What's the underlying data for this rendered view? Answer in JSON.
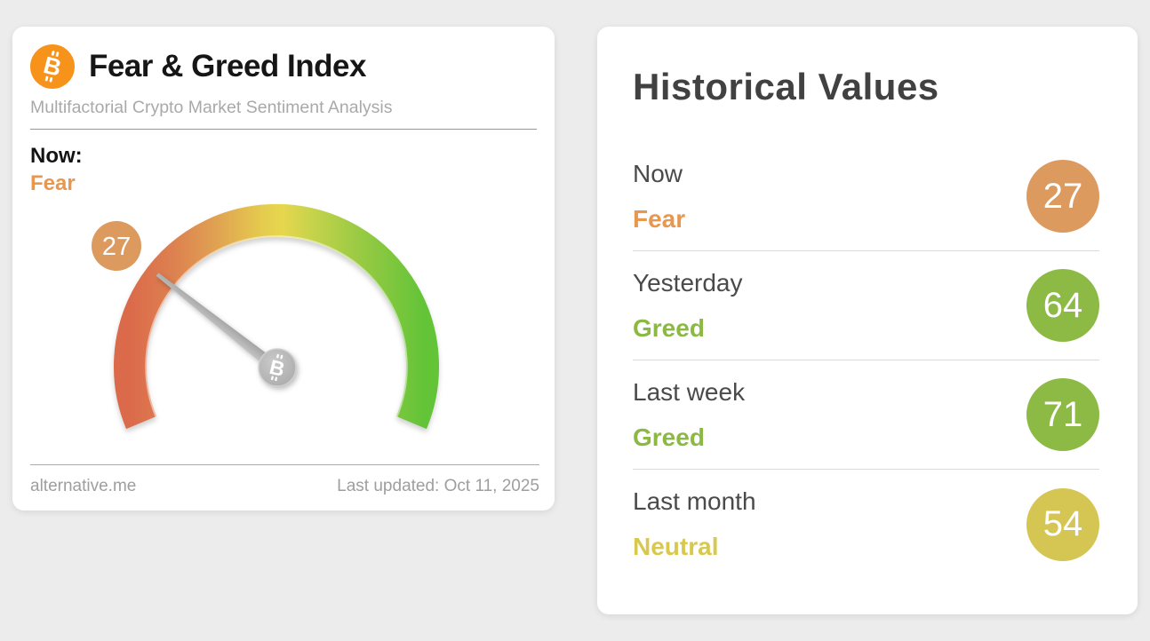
{
  "colors": {
    "page_background": "#ececec",
    "bitcoin_orange": "#f7931a",
    "fear_orange": "#e8974f",
    "greed_green": "#8bb944",
    "neutral_yellow": "#d8c94e",
    "badge_orange": "#dd9a5f",
    "badge_green": "#8cba45",
    "badge_yellow": "#d5c553",
    "gauge_gradient": [
      "#db6a4b",
      "#dd8150",
      "#e0a352",
      "#e5cb4e",
      "#e6d74e",
      "#c6d34b",
      "#9aca44",
      "#64c438"
    ],
    "needle_gray": "#adadad"
  },
  "fng": {
    "title": "Fear & Greed Index",
    "subtitle": "Multifactorial Crypto Market Sentiment Analysis",
    "now_label": "Now:",
    "now_sentiment": "Fear",
    "source": "alternative.me",
    "last_updated": "Last updated: Oct 11, 2025",
    "bitcoin_icon": "bitcoin-logo"
  },
  "historical": {
    "title": "Historical Values"
  },
  "chart_data": {
    "type": "gauge",
    "title": "Fear & Greed Index",
    "value": 27,
    "sentiment": "Fear",
    "range": [
      0,
      100
    ],
    "sweep_degrees": 225,
    "scale_meaning": "0 = Extreme Fear (red, bottom-left) to 100 = Extreme Greed (green, bottom-right)",
    "historical": [
      {
        "label": "Now",
        "sentiment": "Fear",
        "value": 27
      },
      {
        "label": "Yesterday",
        "sentiment": "Greed",
        "value": 64
      },
      {
        "label": "Last week",
        "sentiment": "Greed",
        "value": 71
      },
      {
        "label": "Last month",
        "sentiment": "Neutral",
        "value": 54
      }
    ]
  }
}
